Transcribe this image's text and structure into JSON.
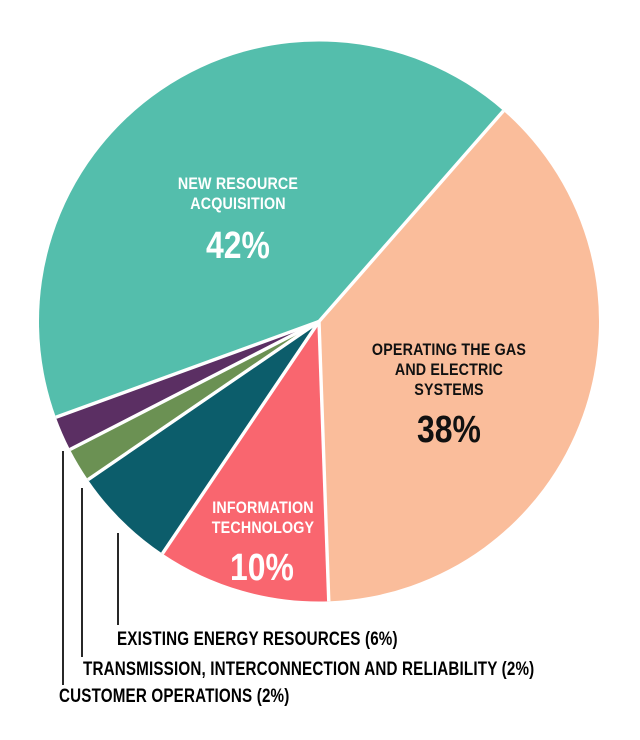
{
  "chart_data": {
    "type": "pie",
    "title": "",
    "legend": "none",
    "units": "percent",
    "start_angle_clockwise_from_top_deg": 250,
    "direction": "clockwise",
    "separator_color": "#FFFFFF",
    "background_color": "#FFFFFF",
    "slices": [
      {
        "label": "NEW RESOURCE ACQUISITION",
        "value": 42,
        "color": "#54BEAC",
        "pct_label": "42%",
        "label_lines": [
          "NEW RESOURCE",
          "ACQUISITION"
        ],
        "label_color": "#FFFFFF",
        "label_style": "inside"
      },
      {
        "label": "OPERATING THE GAS AND ELECTRIC SYSTEMS",
        "value": 38,
        "color": "#FABD9B",
        "pct_label": "38%",
        "label_lines": [
          "OPERATING THE GAS",
          "AND ELECTRIC",
          "SYSTEMS"
        ],
        "label_color": "#111111",
        "label_style": "inside"
      },
      {
        "label": "INFORMATION TECHNOLOGY",
        "value": 10,
        "color": "#F9666F",
        "pct_label": "10%",
        "label_lines": [
          "INFORMATION",
          "TECHNOLOGY"
        ],
        "label_color": "#FFFFFF",
        "label_style": "inside"
      },
      {
        "label": "EXISTING ENERGY RESOURCES",
        "value": 6,
        "color": "#0C5D6B",
        "pct_label": "6%",
        "callout_label": "EXISTING ENERGY RESOURCES (6%)",
        "label_color": "#000000",
        "label_style": "callout"
      },
      {
        "label": "TRANSMISSION, INTERCONNECTION AND RELIABILITY",
        "value": 2,
        "color": "#6B9153",
        "pct_label": "2%",
        "callout_label": "TRANSMISSION, INTERCONNECTION AND RELIABILITY (2%)",
        "label_color": "#000000",
        "label_style": "callout"
      },
      {
        "label": "CUSTOMER OPERATIONS",
        "value": 2,
        "color": "#5B2F63",
        "pct_label": "2%",
        "callout_label": "CUSTOMER OPERATIONS (2%)",
        "label_color": "#000000",
        "label_style": "callout"
      }
    ]
  }
}
